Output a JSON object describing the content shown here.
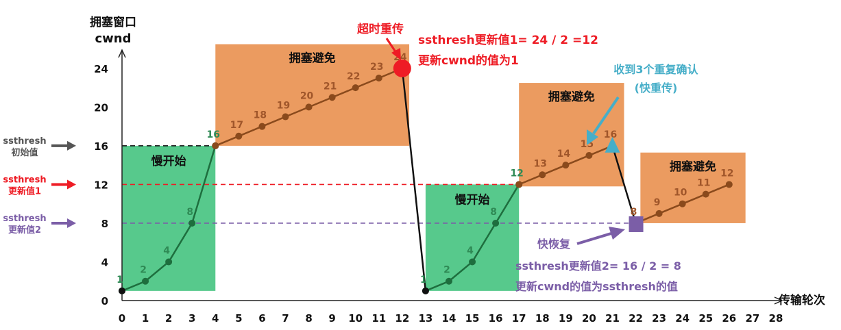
{
  "chart_data": {
    "type": "line",
    "ylabel": [
      "拥塞窗口",
      "cwnd"
    ],
    "xlabel": "传输轮次",
    "xlim": [
      0,
      28
    ],
    "ylim": [
      0,
      24
    ],
    "x_ticks": [
      0,
      1,
      2,
      3,
      4,
      5,
      6,
      7,
      8,
      9,
      10,
      11,
      12,
      13,
      14,
      15,
      16,
      17,
      18,
      19,
      20,
      21,
      22,
      23,
      24,
      25,
      26,
      27,
      28
    ],
    "y_ticks": [
      0,
      4,
      8,
      12,
      16,
      20,
      24
    ],
    "series": [
      {
        "phase": "slow-start",
        "x": [
          0,
          1,
          2,
          3,
          4
        ],
        "y": [
          1,
          2,
          4,
          8,
          16
        ],
        "color": "#1e6e3e"
      },
      {
        "phase": "congestion-avoidance",
        "x": [
          4,
          5,
          6,
          7,
          8,
          9,
          10,
          11,
          12
        ],
        "y": [
          16,
          17,
          18,
          19,
          20,
          21,
          22,
          23,
          24
        ],
        "color": "#8a4a1c"
      },
      {
        "phase": "timeout-drop",
        "x": [
          12,
          13
        ],
        "y": [
          24,
          1
        ],
        "color": "#111111"
      },
      {
        "phase": "slow-start",
        "x": [
          13,
          14,
          15,
          16,
          17
        ],
        "y": [
          1,
          2,
          4,
          8,
          12
        ],
        "color": "#1e6e3e"
      },
      {
        "phase": "congestion-avoidance",
        "x": [
          17,
          18,
          19,
          20,
          21
        ],
        "y": [
          12,
          13,
          14,
          15,
          16
        ],
        "color": "#8a4a1c"
      },
      {
        "phase": "fast-recovery-drop",
        "x": [
          21,
          22
        ],
        "y": [
          16,
          8
        ],
        "color": "#111111"
      },
      {
        "phase": "congestion-avoidance",
        "x": [
          22,
          23,
          24,
          25,
          26
        ],
        "y": [
          8,
          9,
          10,
          11,
          12
        ],
        "color": "#8a4a1c"
      }
    ],
    "regions": [
      {
        "label": "慢开始",
        "x": [
          0,
          4
        ],
        "y": [
          1,
          16
        ],
        "color": "#57c98c"
      },
      {
        "label": "拥塞避免",
        "x": [
          4,
          12.3
        ],
        "y": [
          16,
          26.5
        ],
        "color": "#eb9b60"
      },
      {
        "label": "慢开始",
        "x": [
          13,
          17
        ],
        "y": [
          1,
          12
        ],
        "color": "#57c98c"
      },
      {
        "label": "拥塞避免",
        "x": [
          17,
          21.5
        ],
        "y": [
          11.8,
          22.5
        ],
        "color": "#eb9b60"
      },
      {
        "label": "拥塞避免",
        "x": [
          22.2,
          26.7
        ],
        "y": [
          8,
          15.3
        ],
        "color": "#eb9b60"
      }
    ],
    "thresholds": [
      {
        "value": 16,
        "label": [
          "ssthresh",
          "初始值"
        ],
        "color": "#555555",
        "x_end": 4
      },
      {
        "value": 12,
        "label": [
          "ssthresh",
          "更新值1"
        ],
        "color": "#ee1c25",
        "x_end": 17
      },
      {
        "value": 8,
        "label": [
          "ssthresh",
          "更新值2"
        ],
        "color": "#7b5ea7",
        "x_end": 22
      }
    ],
    "annotations": {
      "timeout": {
        "label": "超时重传",
        "color": "#ee1c25",
        "lines": [
          "ssthresh更新值1= 24 / 2 =12",
          "更新cwnd的值为1"
        ]
      },
      "triple_ack": {
        "lines": [
          "收到3个重复确认",
          "(快重传)"
        ],
        "color": "#46aec8"
      },
      "fast_recovery": {
        "label": "快恢复",
        "color": "#7b5ea7",
        "lines": [
          "ssthresh更新值2= 16 / 2 = 8",
          "更新cwnd的值为ssthresh的值"
        ]
      }
    }
  }
}
